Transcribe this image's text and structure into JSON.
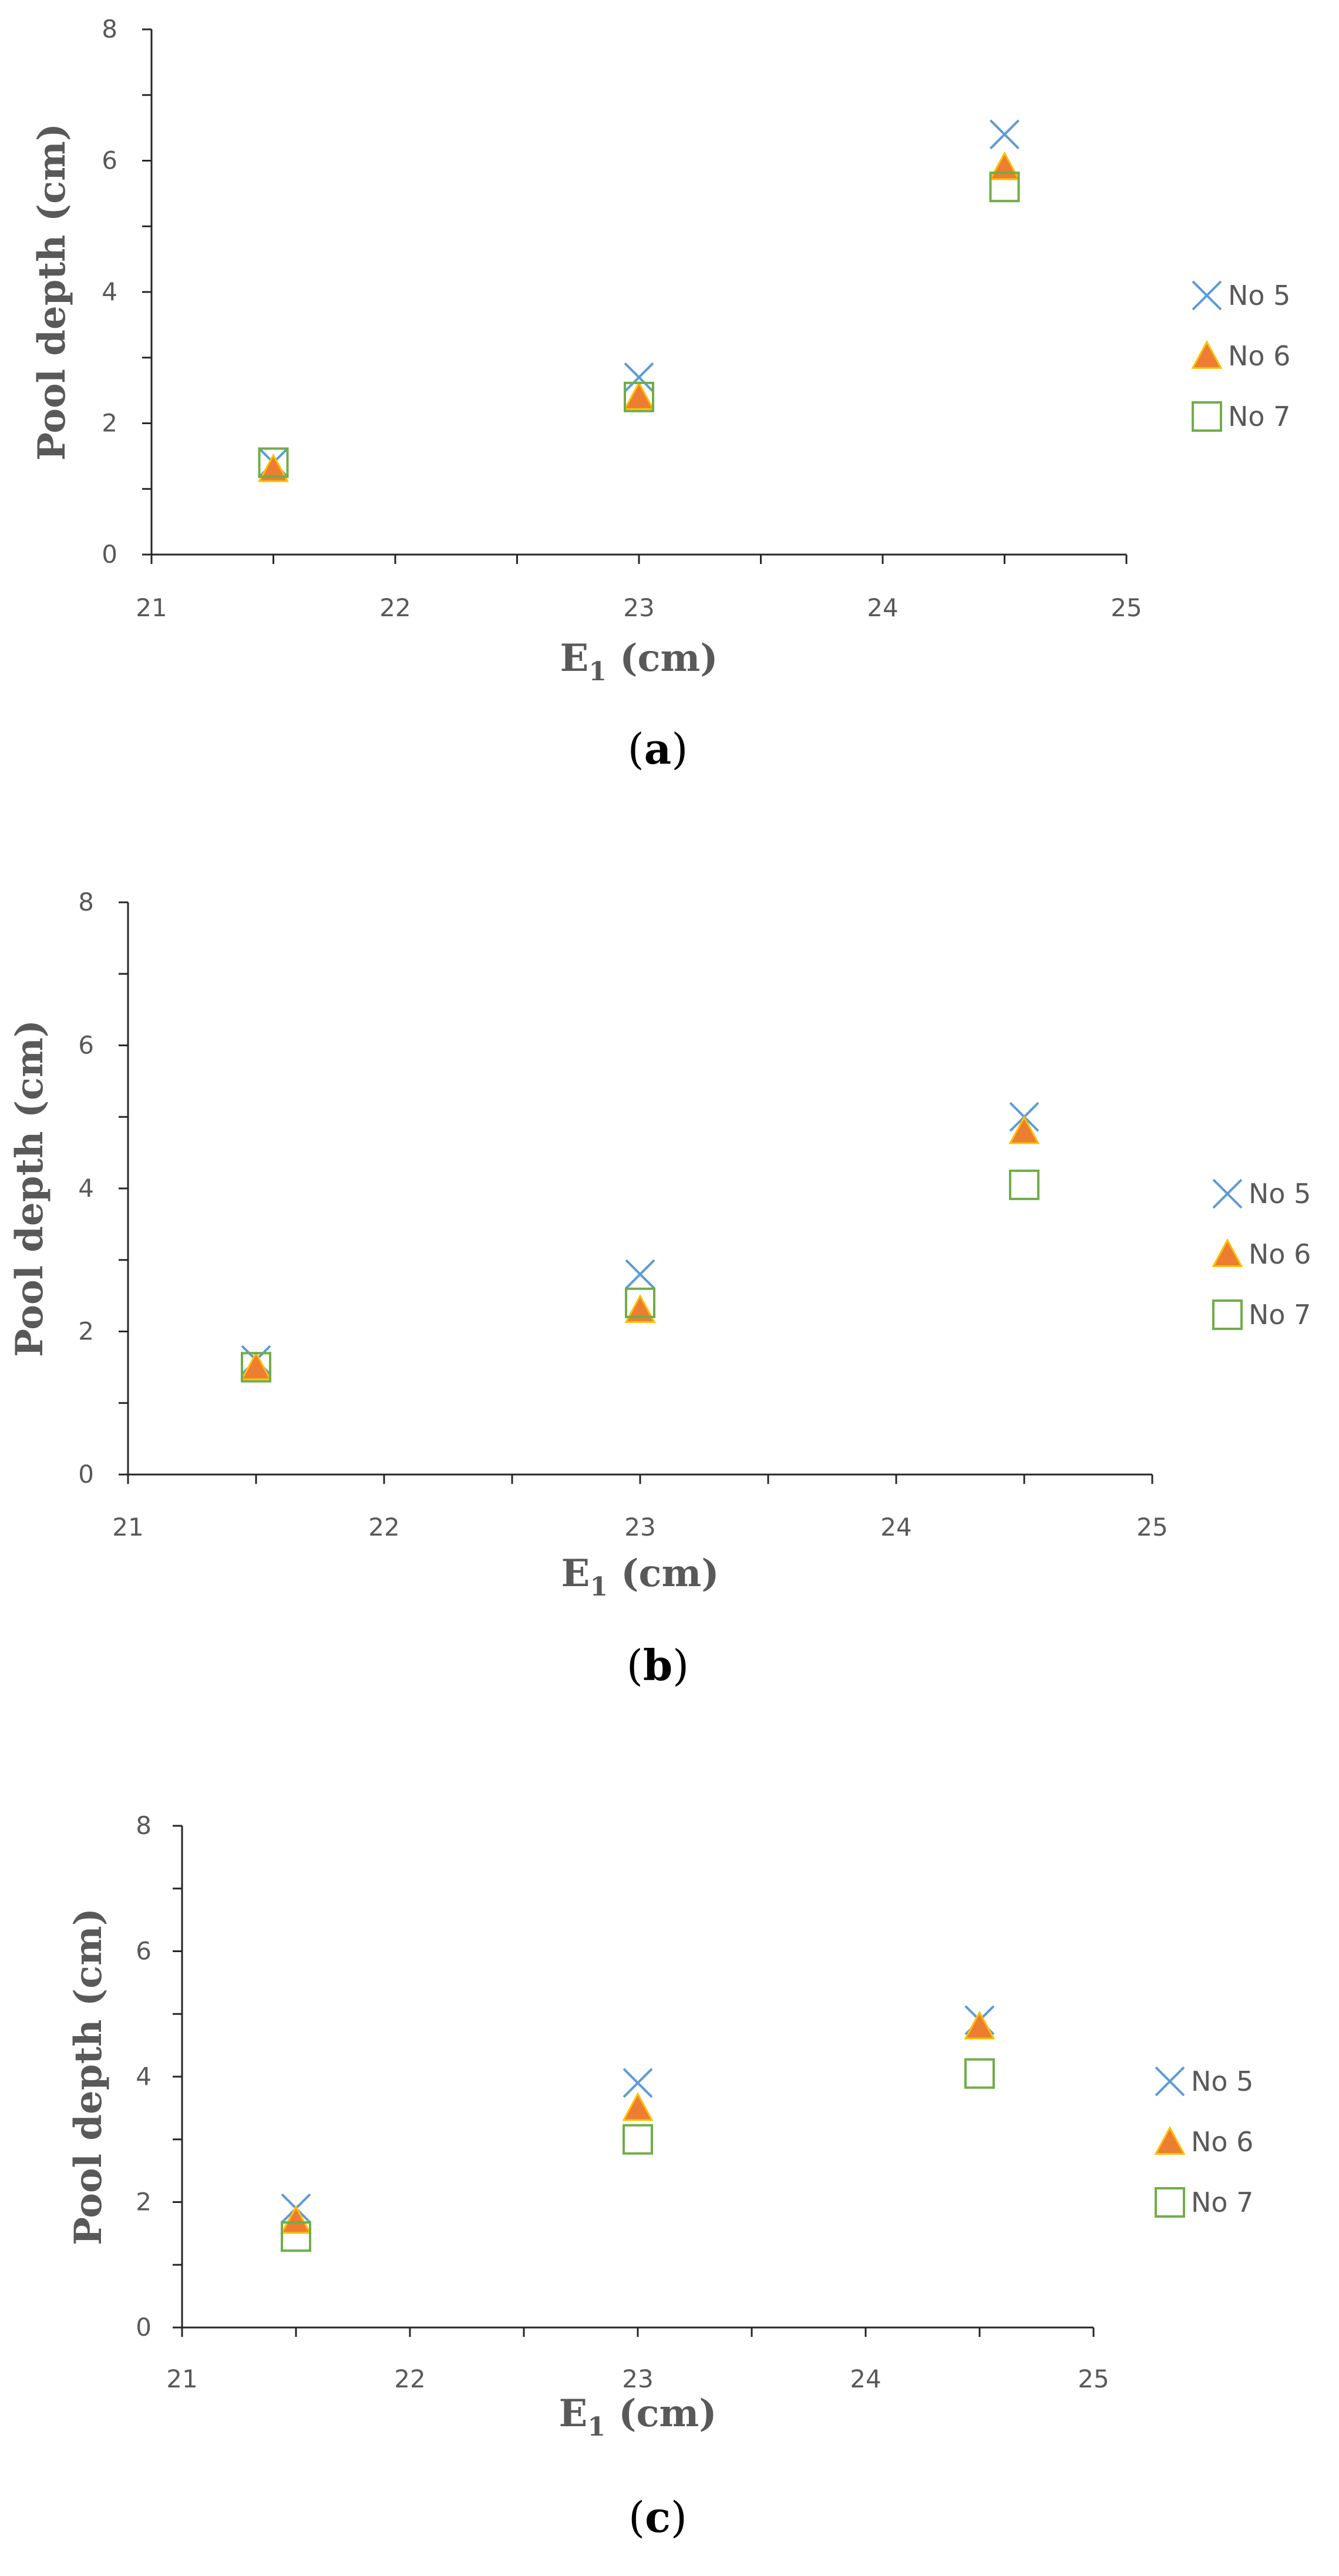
{
  "colors": {
    "axis": "#262626",
    "text": "#595959",
    "no5": "#5B9BD5",
    "no6_fill": "#ED7D31",
    "no6_edge": "#FFC000",
    "no7": "#70AD47"
  },
  "chart_data": [
    {
      "panel": "(a)",
      "panel_letter": "a",
      "type": "scatter",
      "xlabel": "E1 (cm)",
      "xlabel_main": "E",
      "xlabel_sub": "1",
      "xlabel_unit": " (cm)",
      "ylabel": "Pool depth (cm)",
      "xlim": [
        21,
        25
      ],
      "ylim": [
        0,
        8
      ],
      "xticks": [
        "21",
        "22",
        "23",
        "24",
        "25"
      ],
      "yticks": [
        "0",
        "2",
        "4",
        "6",
        "8"
      ],
      "grid": false,
      "legend_position": "right",
      "series": [
        {
          "name": "No 5",
          "marker": "x",
          "x": [
            21.5,
            23,
            24.5
          ],
          "y": [
            1.4,
            2.7,
            6.4
          ]
        },
        {
          "name": "No 6",
          "marker": "triangle",
          "x": [
            21.5,
            23,
            24.5
          ],
          "y": [
            1.3,
            2.4,
            5.9
          ]
        },
        {
          "name": "No 7",
          "marker": "square",
          "x": [
            21.5,
            23,
            24.5
          ],
          "y": [
            1.4,
            2.4,
            5.6
          ]
        }
      ]
    },
    {
      "panel": "(b)",
      "panel_letter": "b",
      "type": "scatter",
      "xlabel": "E1 (cm)",
      "xlabel_main": "E",
      "xlabel_sub": "1",
      "xlabel_unit": " (cm)",
      "ylabel": "Pool depth (cm)",
      "xlim": [
        21,
        25
      ],
      "ylim": [
        0,
        8
      ],
      "xticks": [
        "21",
        "22",
        "23",
        "24",
        "25"
      ],
      "yticks": [
        "0",
        "2",
        "4",
        "6",
        "8"
      ],
      "grid": false,
      "legend_position": "right",
      "series": [
        {
          "name": "No 5",
          "marker": "x",
          "x": [
            21.5,
            23,
            24.5
          ],
          "y": [
            1.6,
            2.8,
            5.0
          ]
        },
        {
          "name": "No 6",
          "marker": "triangle",
          "x": [
            21.5,
            23,
            24.5
          ],
          "y": [
            1.5,
            2.3,
            4.8
          ]
        },
        {
          "name": "No 7",
          "marker": "square",
          "x": [
            21.5,
            23,
            24.5
          ],
          "y": [
            1.5,
            2.4,
            4.05
          ]
        }
      ]
    },
    {
      "panel": "(c)",
      "panel_letter": "c",
      "type": "scatter",
      "xlabel": "E1 (cm)",
      "xlabel_main": "E",
      "xlabel_sub": "1",
      "xlabel_unit": " (cm)",
      "ylabel": "Pool depth (cm)",
      "xlim": [
        21,
        25
      ],
      "ylim": [
        0,
        8
      ],
      "xticks": [
        "21",
        "22",
        "23",
        "24",
        "25"
      ],
      "yticks": [
        "0",
        "2",
        "4",
        "6",
        "8"
      ],
      "grid": false,
      "legend_position": "right",
      "series": [
        {
          "name": "No 5",
          "marker": "x",
          "x": [
            21.5,
            23,
            24.5
          ],
          "y": [
            1.9,
            3.9,
            4.9
          ]
        },
        {
          "name": "No 6",
          "marker": "triangle",
          "x": [
            21.5,
            23,
            24.5
          ],
          "y": [
            1.7,
            3.5,
            4.8
          ]
        },
        {
          "name": "No 7",
          "marker": "square",
          "x": [
            21.5,
            23,
            24.5
          ],
          "y": [
            1.45,
            3.0,
            4.05
          ]
        }
      ]
    }
  ]
}
